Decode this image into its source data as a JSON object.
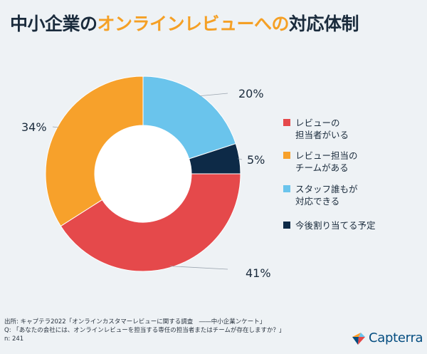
{
  "title": {
    "part1": "中小企業の",
    "highlight": "オンラインレビューへの",
    "part2": "対応体制"
  },
  "chart_data": {
    "type": "pie",
    "donut": true,
    "start": "12 o'clock, clockwise",
    "slices": [
      {
        "label": "スタッフ誰もが\n対応できる",
        "value": 20,
        "display": "20%",
        "color": "#6ac4ec"
      },
      {
        "label": "今後割り当てる予定",
        "value": 5,
        "display": "5%",
        "color": "#0d2a47"
      },
      {
        "label": "レビューの\n担当者がいる",
        "value": 41,
        "display": "41%",
        "color": "#e5494b"
      },
      {
        "label": "レビュー担当の\nチームがある",
        "value": 34,
        "display": "34%",
        "color": "#f7a12b"
      }
    ],
    "legend_order": [
      2,
      3,
      0,
      1
    ],
    "legend_position": "right"
  },
  "footer": {
    "source": "出所: キャプテラ2022「オンラインカスタマーレビューに関する調査　――中小企業ンケート」",
    "question": "Q: 「あなたの会社には、オンラインレビューを担当する専任の担当者またはチームが存在しますか？」",
    "n": "n: 241"
  },
  "brand": {
    "name": "Capterra",
    "colors": [
      "#ff9d28",
      "#68c5ed",
      "#044d80",
      "#e54747"
    ]
  }
}
